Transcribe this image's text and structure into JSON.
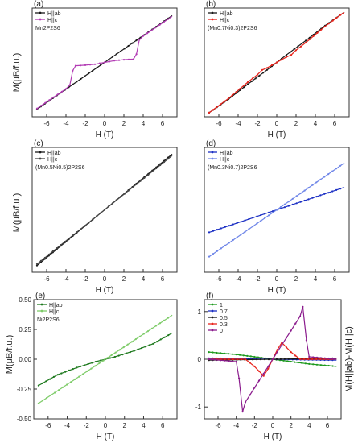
{
  "figure": {
    "y_label_left_top": "M(μB/f.u.)",
    "y_label_left_middle": "M(μB/f.u.)",
    "y_label_left_bottom": "M(μB/f.u.)",
    "y_label_right_bottom": "M(H||ab)-M(H||c)"
  },
  "chart_data": [
    {
      "panel": "(a)",
      "type": "line",
      "xlabel": "H (T)",
      "ylabel": "M(μB/f.u.)",
      "xlim": [
        -7.5,
        7.5
      ],
      "ylim": [
        -3.6,
        3.6
      ],
      "x_ticks": [
        "-6",
        "-4",
        "-2",
        "0",
        "2",
        "4",
        "6"
      ],
      "y_ticks": [],
      "legend": [
        "H||ab",
        "H||c"
      ],
      "legend_position": "top-left",
      "annotation": "Mn2P2S6",
      "series": [
        {
          "name": "H||ab",
          "color": "#1a1a1a",
          "points": [
            [
              -7,
              -3.1
            ],
            [
              7,
              3.1
            ]
          ]
        },
        {
          "name": "H||c",
          "color": "#b23bb4",
          "points": [
            [
              -7,
              -3.05
            ],
            [
              -4,
              -1.75
            ],
            [
              -3.6,
              -1.5
            ],
            [
              -3.3,
              -0.55
            ],
            [
              -3,
              -0.22
            ],
            [
              -2,
              -0.18
            ],
            [
              -1,
              -0.12
            ],
            [
              0,
              0
            ],
            [
              1,
              0.12
            ],
            [
              2,
              0.18
            ],
            [
              3,
              0.22
            ],
            [
              3.3,
              0.55
            ],
            [
              3.6,
              1.5
            ],
            [
              4,
              1.75
            ],
            [
              7,
              3.05
            ]
          ]
        }
      ]
    },
    {
      "panel": "(b)",
      "type": "line",
      "xlabel": "H (T)",
      "ylabel": "",
      "xlim": [
        -7.5,
        7.5
      ],
      "ylim": [
        -4.0,
        4.0
      ],
      "x_ticks": [
        "-6",
        "-4",
        "-2",
        "0",
        "2",
        "4",
        "6"
      ],
      "y_ticks": [],
      "legend": [
        "H||ab",
        "H||c"
      ],
      "legend_position": "top-left",
      "annotation": "(Mn0.7Ni0.3)2P2S6",
      "series": [
        {
          "name": "H||ab",
          "color": "#1a1a1a",
          "points": [
            [
              -7,
              -3.7
            ],
            [
              -5,
              -2.7
            ],
            [
              -3,
              -1.6
            ],
            [
              -1,
              -0.55
            ],
            [
              0,
              0
            ],
            [
              1,
              0.55
            ],
            [
              3,
              1.6
            ],
            [
              5,
              2.7
            ],
            [
              7,
              3.7
            ]
          ]
        },
        {
          "name": "H||c",
          "color": "#e8241c",
          "points": [
            [
              -7,
              -3.7
            ],
            [
              -5,
              -2.65
            ],
            [
              -3,
              -1.45
            ],
            [
              -2,
              -0.9
            ],
            [
              -1.5,
              -0.55
            ],
            [
              -1,
              -0.4
            ],
            [
              0,
              0
            ],
            [
              1,
              0.4
            ],
            [
              1.5,
              0.55
            ],
            [
              2,
              0.9
            ],
            [
              3,
              1.45
            ],
            [
              5,
              2.65
            ],
            [
              7,
              3.7
            ]
          ]
        }
      ]
    },
    {
      "panel": "(c)",
      "type": "line",
      "xlabel": "H (T)",
      "ylabel": "M(μB/f.u.)",
      "xlim": [
        -7.5,
        7.5
      ],
      "ylim": [
        -2.3,
        2.3
      ],
      "x_ticks": [
        "-6",
        "-4",
        "-2",
        "0",
        "2",
        "4",
        "6"
      ],
      "y_ticks": [],
      "legend": [
        "H||ab",
        "H||c"
      ],
      "legend_position": "top-left",
      "annotation": "(Mn0.5Ni0.5)2P2S6",
      "series": [
        {
          "name": "H||ab",
          "color": "#1a1a1a",
          "points": [
            [
              -7,
              -2.05
            ],
            [
              7,
              2.05
            ]
          ]
        },
        {
          "name": "H||c",
          "color": "#444444",
          "points": [
            [
              -7,
              -2.0
            ],
            [
              7,
              2.0
            ]
          ]
        }
      ]
    },
    {
      "panel": "(d)",
      "type": "line",
      "xlabel": "H (T)",
      "ylabel": "",
      "xlim": [
        -7.5,
        7.5
      ],
      "ylim": [
        -2.0,
        2.0
      ],
      "x_ticks": [
        "-6",
        "-4",
        "-2",
        "0",
        "2",
        "4",
        "6"
      ],
      "y_ticks": [],
      "legend": [
        "H||ab",
        "H||c"
      ],
      "legend_position": "top-left",
      "annotation": "(Mn0.3Ni0.7)2P2S6",
      "series": [
        {
          "name": "H||ab",
          "color": "#1b2fc4",
          "points": [
            [
              -7,
              -0.72
            ],
            [
              7,
              0.72
            ]
          ]
        },
        {
          "name": "H||c",
          "color": "#6f86e8",
          "points": [
            [
              -7,
              -1.5
            ],
            [
              7,
              1.5
            ]
          ]
        }
      ]
    },
    {
      "panel": "(e)",
      "type": "line",
      "xlabel": "H (T)",
      "ylabel": "M(μB/f.u.)",
      "xlim": [
        -7.5,
        7.5
      ],
      "ylim": [
        -0.5,
        0.5
      ],
      "x_ticks": [
        "-6",
        "-4",
        "-2",
        "0",
        "2",
        "4",
        "6"
      ],
      "y_ticks": [
        "-0.50",
        "-0.25",
        "0.00",
        "0.25",
        "0.50"
      ],
      "legend": [
        "H||ab",
        "H||c"
      ],
      "legend_position": "top-left",
      "annotation": "Ni2P2S6",
      "series": [
        {
          "name": "H||ab",
          "color": "#1f7a1f",
          "points": [
            [
              -7,
              -0.22
            ],
            [
              -5,
              -0.13
            ],
            [
              -3,
              -0.07
            ],
            [
              -1,
              -0.02
            ],
            [
              0,
              0
            ],
            [
              1,
              0.02
            ],
            [
              3,
              0.07
            ],
            [
              5,
              0.13
            ],
            [
              7,
              0.22
            ]
          ]
        },
        {
          "name": "H||c",
          "color": "#7fcc6a",
          "points": [
            [
              -7,
              -0.37
            ],
            [
              7,
              0.37
            ]
          ]
        }
      ]
    },
    {
      "panel": "(f)",
      "type": "line",
      "xlabel": "H (T)",
      "ylabel": "M(H||ab)-M(H||c)",
      "xlim": [
        -7.5,
        7.5
      ],
      "ylim": [
        -1.25,
        1.25
      ],
      "x_ticks": [
        "-6",
        "-4",
        "-2",
        "0",
        "2",
        "4",
        "6"
      ],
      "y_ticks": [
        "-1",
        "0",
        "1"
      ],
      "legend": [
        "1",
        "0.7",
        "0.5",
        "0.3",
        "0"
      ],
      "legend_position": "top-left",
      "series": [
        {
          "name": "1",
          "color": "#1f9a1f",
          "points": [
            [
              -7,
              0.15
            ],
            [
              -4,
              0.1
            ],
            [
              -2,
              0.05
            ],
            [
              0,
              0
            ],
            [
              2,
              -0.05
            ],
            [
              4,
              -0.1
            ],
            [
              7,
              -0.15
            ]
          ]
        },
        {
          "name": "0.7",
          "color": "#1b2fc4",
          "points": [
            [
              -7,
              0.02
            ],
            [
              0,
              0
            ],
            [
              7,
              -0.02
            ]
          ]
        },
        {
          "name": "0.5",
          "color": "#1a1a1a",
          "points": [
            [
              -7,
              -0.02
            ],
            [
              7,
              0.02
            ]
          ]
        },
        {
          "name": "0.3",
          "color": "#e8241c",
          "points": [
            [
              -7,
              0
            ],
            [
              -3,
              0
            ],
            [
              -2,
              -0.15
            ],
            [
              -1,
              -0.35
            ],
            [
              -0.5,
              -0.2
            ],
            [
              0,
              0
            ],
            [
              0.5,
              0.2
            ],
            [
              1,
              0.35
            ],
            [
              2,
              0.15
            ],
            [
              3,
              0
            ],
            [
              7,
              0
            ]
          ]
        },
        {
          "name": "0",
          "color": "#8b1c8d",
          "points": [
            [
              -7,
              0
            ],
            [
              -4,
              -0.05
            ],
            [
              -3.7,
              -0.4
            ],
            [
              -3.3,
              -1.1
            ],
            [
              -3,
              -0.9
            ],
            [
              -2,
              -0.6
            ],
            [
              -1,
              -0.3
            ],
            [
              0,
              0
            ],
            [
              1,
              0.3
            ],
            [
              2,
              0.6
            ],
            [
              3,
              0.9
            ],
            [
              3.3,
              1.1
            ],
            [
              3.7,
              0.4
            ],
            [
              4,
              0.05
            ],
            [
              7,
              0
            ]
          ]
        }
      ]
    }
  ]
}
